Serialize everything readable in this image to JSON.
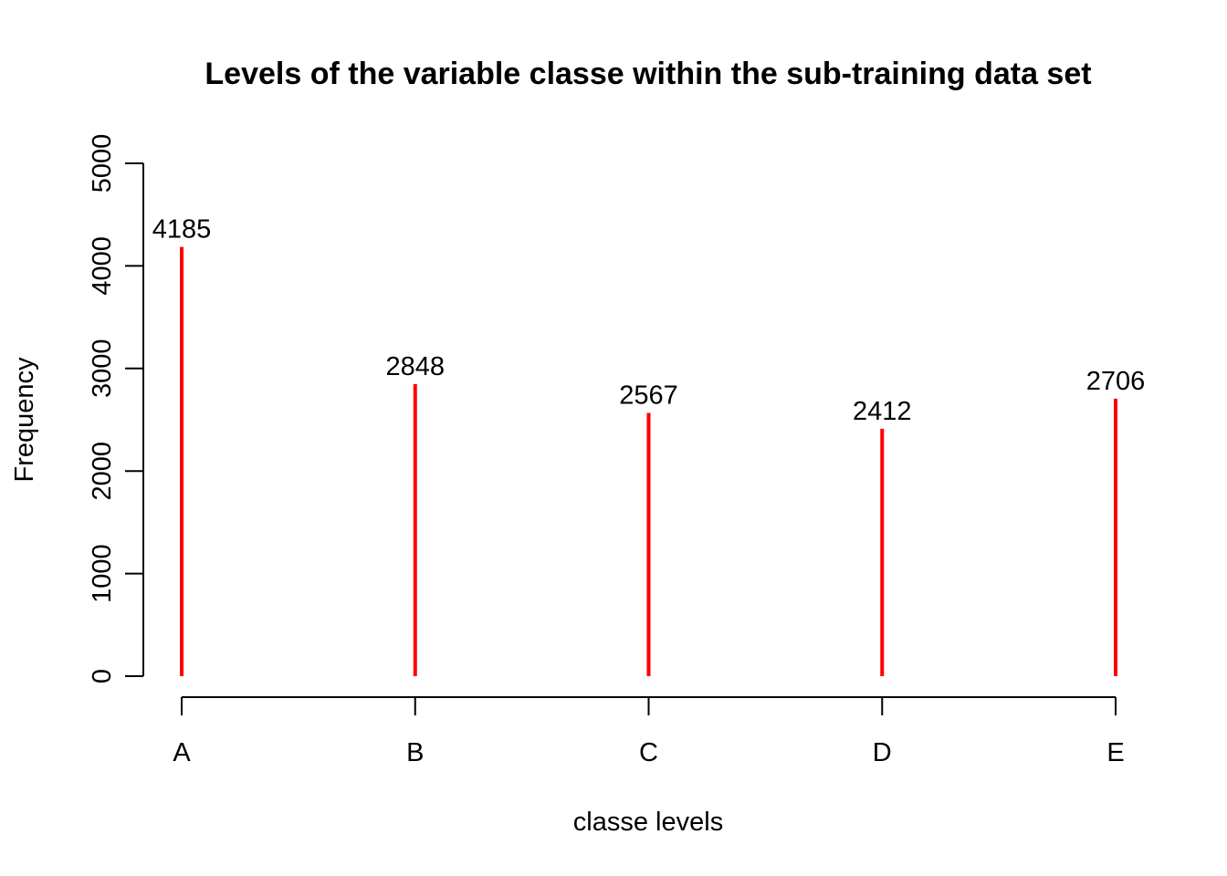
{
  "chart_data": {
    "type": "bar",
    "title": "Levels of the variable classe within the sub-training data set",
    "xlabel": "classe levels",
    "ylabel": "Frequency",
    "categories": [
      "A",
      "B",
      "C",
      "D",
      "E"
    ],
    "values": [
      4185,
      2848,
      2567,
      2412,
      2706
    ],
    "data_labels": [
      "4185",
      "2848",
      "2567",
      "2412",
      "2706"
    ],
    "ylim": [
      0,
      5000
    ],
    "yticks": [
      0,
      1000,
      2000,
      3000,
      4000,
      5000
    ],
    "ytick_labels": [
      "0",
      "1000",
      "2000",
      "3000",
      "4000",
      "5000"
    ],
    "bar_style": "vertical lines",
    "bar_color": "#ff0000",
    "grid": false,
    "legend": "none"
  }
}
